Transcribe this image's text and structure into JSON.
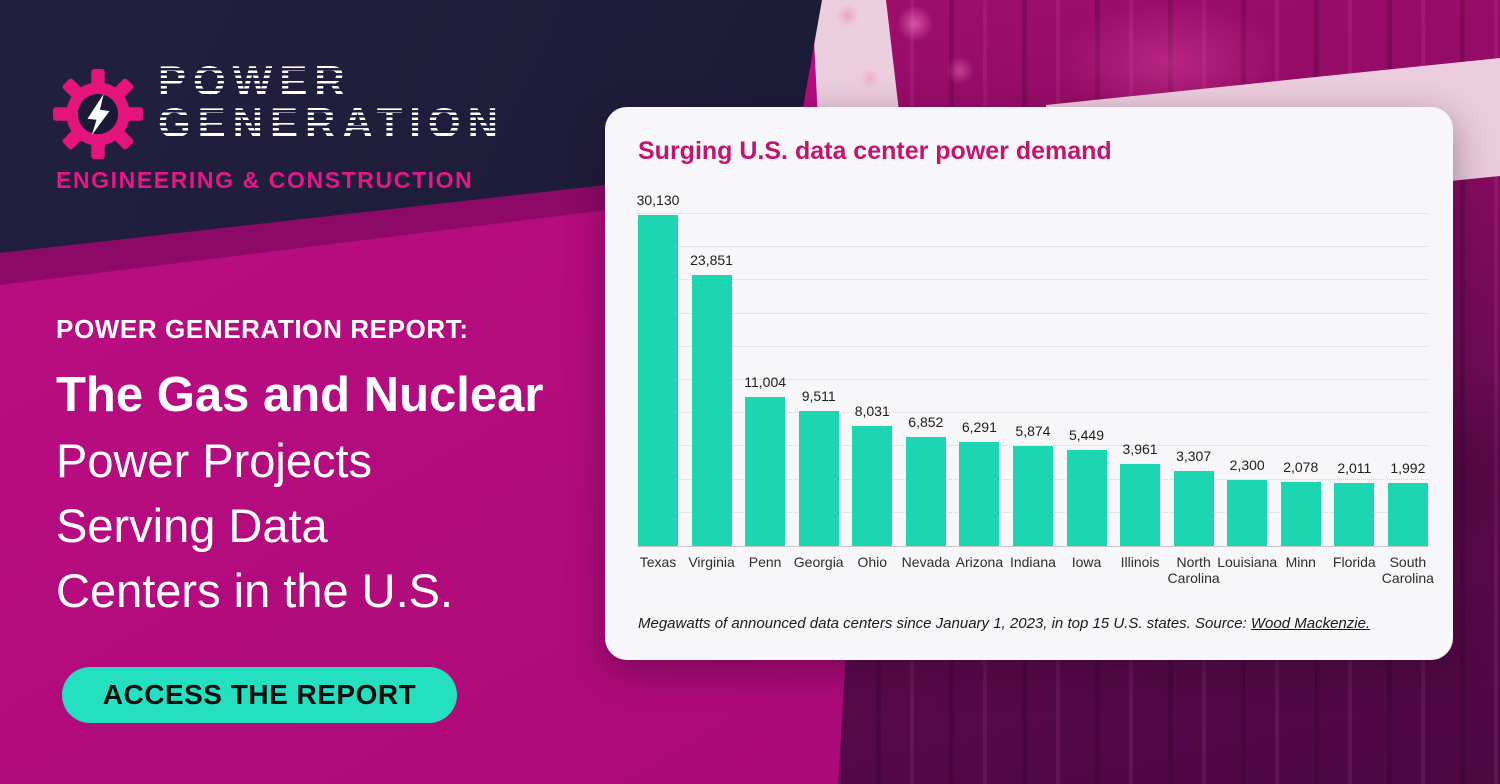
{
  "brand": {
    "name_line1": "POWER",
    "name_line2": "GENERATION",
    "tagline": "ENGINEERING & CONSTRUCTION"
  },
  "hero": {
    "eyebrow": "POWER GENERATION REPORT:",
    "title_bold": "The Gas and Nuclear",
    "title_lines": [
      "Power Projects",
      "Serving Data",
      "Centers in the U.S."
    ],
    "cta_label": "ACCESS THE REPORT"
  },
  "colors": {
    "navy": "#1b1a36",
    "background_pink": "#b30b7d",
    "brand_pink": "#e8158b",
    "bar_teal": "#1bd6b1",
    "button_teal": "#25dfc1",
    "chart_title_pink": "#c3156d",
    "card_background": "#f7f6f8",
    "light_band": "#e6c5d9"
  },
  "chart_data": {
    "type": "bar",
    "title": "Surging U.S. data center power demand",
    "categories": [
      "Texas",
      "Virginia",
      "Penn",
      "Georgia",
      "Ohio",
      "Nevada",
      "Arizona",
      "Indiana",
      "Iowa",
      "Illinois",
      "North Carolina",
      "Louisiana",
      "Minn",
      "Florida",
      "South Carolina"
    ],
    "values": [
      30130,
      23851,
      11004,
      9511,
      8031,
      6852,
      6291,
      5874,
      5449,
      3961,
      3307,
      2300,
      2078,
      2011,
      1992
    ],
    "value_labels": [
      "30,130",
      "23,851",
      "11,004",
      "9,511",
      "8,031",
      "6,852",
      "6,291",
      "5,874",
      "5,449",
      "3,961",
      "3,307",
      "2,300",
      "2,078",
      "2,011",
      "1,992"
    ],
    "unit": "megawatts",
    "xlabel": "",
    "ylabel": "",
    "ylim": [
      0,
      30130
    ],
    "grid": "horizontal-dotted",
    "legend": "none",
    "footnote": {
      "text": "Megawatts of announced data centers since January 1, 2023, in top 15 U.S. states. Source: ",
      "link": "Wood Mackenzie."
    }
  }
}
